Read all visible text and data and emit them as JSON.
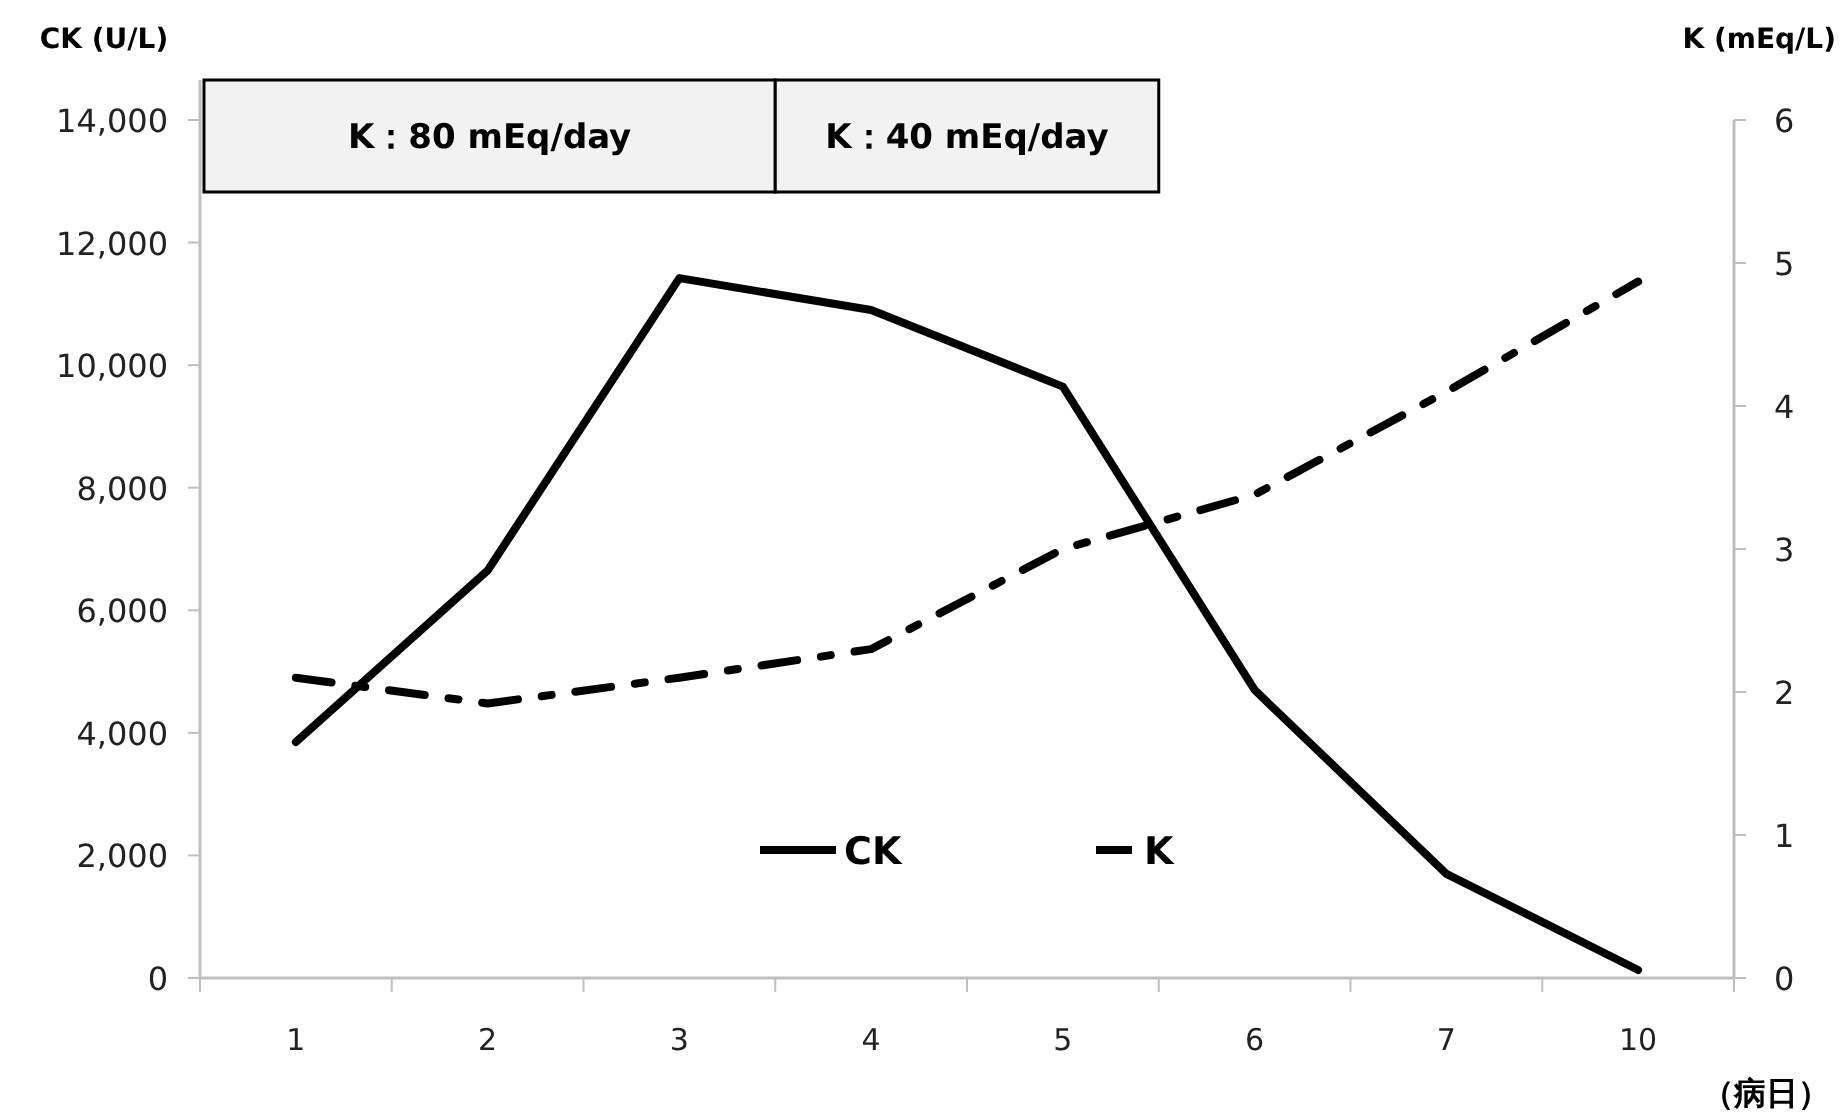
{
  "chart_data": {
    "type": "line",
    "xlabel": "（病日）",
    "categories": [
      "1",
      "2",
      "3",
      "4",
      "5",
      "6",
      "7",
      "10"
    ],
    "series": [
      {
        "name": "CK",
        "color": "#000000",
        "line_style": "solid",
        "values": [
          3850,
          6650,
          11420,
          10900,
          9650,
          4700,
          1700,
          130
        ]
      },
      {
        "name": "K",
        "color": "#000000",
        "line_style": "dashdot",
        "axis": "y2",
        "values": [
          2.1,
          1.92,
          2.1,
          2.3,
          3.0,
          3.38,
          4.1,
          4.87
        ]
      }
    ],
    "ylabel": "CK (U/L)",
    "y2label": "K (mEq/L)",
    "ylim": [
      0,
      14000
    ],
    "yticks": [
      0,
      {
        "value": 2000,
        "label": "2,000"
      },
      {
        "value": 4000,
        "label": "4,000"
      },
      {
        "value": 6000,
        "label": "6,000"
      },
      {
        "value": 8000,
        "label": "8,000"
      },
      {
        "value": 10000,
        "label": "10,000"
      },
      {
        "value": 12000,
        "label": "12,000"
      },
      {
        "value": 14000,
        "label": "14,000"
      }
    ],
    "y2lim": [
      0,
      6
    ],
    "y2ticks": [
      0,
      1,
      2,
      3,
      4,
      5,
      6
    ],
    "bands": [
      {
        "axis": "x",
        "from": "1",
        "to": "3",
        "label": "K：80 mEq/day",
        "color": "#f2f2f2"
      },
      {
        "axis": "x",
        "from": "4",
        "to": "5",
        "label": "K：40 mEq/day",
        "color": "#f2f2f2"
      }
    ],
    "legend": "bottom",
    "grid": false,
    "marker": "none"
  }
}
